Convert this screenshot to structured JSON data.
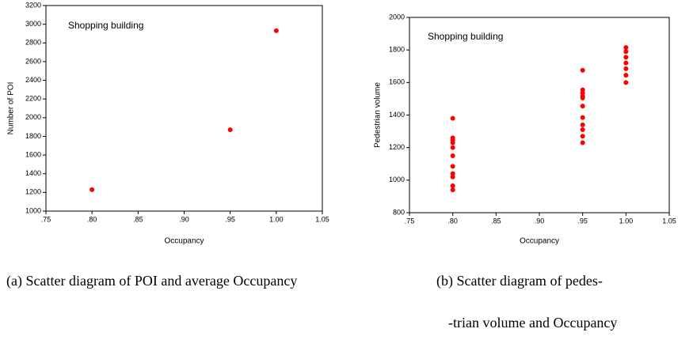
{
  "chart_data": [
    {
      "type": "scatter",
      "annotation": "Shopping building",
      "xlabel": "Occupancy",
      "ylabel": "Number of POI",
      "xlim": [
        0.75,
        1.05
      ],
      "xticks": [
        {
          "value": 0.75,
          "label": ".75"
        },
        {
          "value": 0.8,
          "label": ".80"
        },
        {
          "value": 0.85,
          "label": ".85"
        },
        {
          "value": 0.9,
          "label": ".90"
        },
        {
          "value": 0.95,
          "label": ".95"
        },
        {
          "value": 1.0,
          "label": "1.00"
        },
        {
          "value": 1.05,
          "label": "1.05"
        }
      ],
      "ylim": [
        1000,
        3200
      ],
      "yticks": [
        1000,
        1200,
        1400,
        1600,
        1800,
        2000,
        2200,
        2400,
        2600,
        2800,
        3000,
        3200
      ],
      "series": [
        {
          "color": "#ff0000",
          "x": [
            0.8,
            0.95,
            1.0
          ],
          "values": [
            1230,
            1870,
            2930
          ]
        }
      ]
    },
    {
      "type": "scatter",
      "annotation": "Shopping building",
      "xlabel": "Occupancy",
      "ylabel": "Pedestrian volume",
      "xlim": [
        0.75,
        1.05
      ],
      "xticks": [
        {
          "value": 0.75,
          "label": ".75"
        },
        {
          "value": 0.8,
          "label": ".80"
        },
        {
          "value": 0.85,
          "label": ".85"
        },
        {
          "value": 0.9,
          "label": ".90"
        },
        {
          "value": 0.95,
          "label": ".95"
        },
        {
          "value": 1.0,
          "label": "1.00"
        },
        {
          "value": 1.05,
          "label": "1.05"
        }
      ],
      "ylim": [
        800,
        2000
      ],
      "yticks": [
        800,
        1000,
        1200,
        1400,
        1600,
        1800,
        2000
      ],
      "series": [
        {
          "color": "#ff0000",
          "x": [
            0.8,
            0.8,
            0.8,
            0.8,
            0.8,
            0.8,
            0.8,
            0.8,
            0.8,
            0.8,
            0.8,
            0.95,
            0.95,
            0.95,
            0.95,
            0.95,
            0.95,
            0.95,
            0.95,
            0.95,
            0.95,
            0.95,
            1.0,
            1.0,
            1.0,
            1.0,
            1.0,
            1.0,
            1.0
          ],
          "values": [
            1380,
            1260,
            1245,
            1230,
            1200,
            1150,
            1085,
            1040,
            1020,
            965,
            940,
            1675,
            1555,
            1535,
            1515,
            1505,
            1455,
            1385,
            1340,
            1310,
            1270,
            1230,
            1815,
            1790,
            1755,
            1720,
            1685,
            1645,
            1600
          ]
        }
      ]
    }
  ],
  "captions": [
    "(a) Scatter diagram of POI and average Occupancy",
    "(b) Scatter diagram of pedes-",
    "-trian volume and Occupancy"
  ]
}
